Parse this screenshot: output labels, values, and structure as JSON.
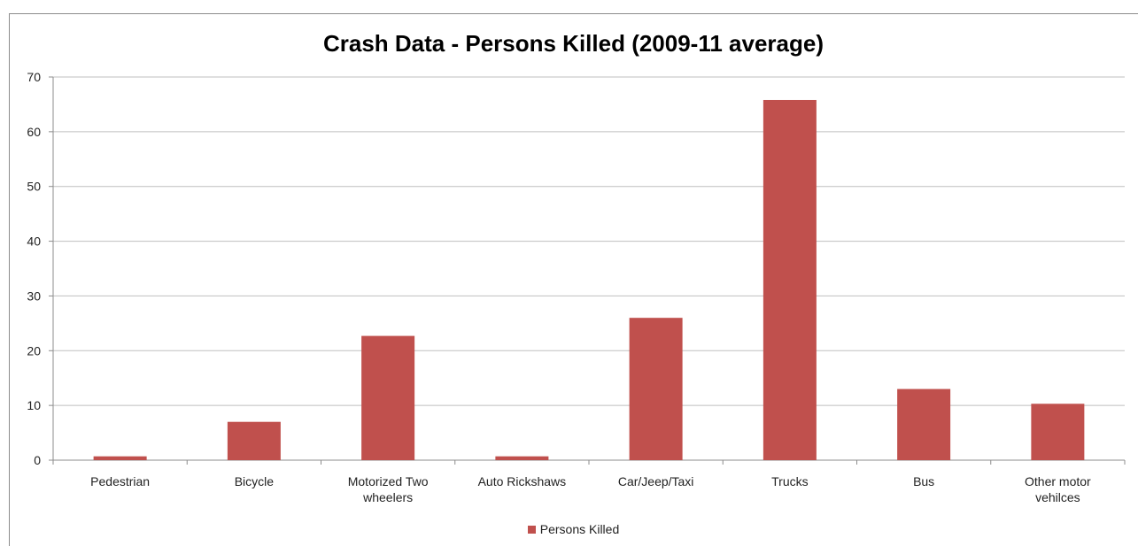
{
  "chart_data": {
    "type": "bar",
    "title": "Crash Data - Persons Killed (2009-11 average)",
    "xlabel": "",
    "ylabel": "",
    "categories": [
      "Pedestrian",
      "Bicycle",
      "Motorized Two wheelers",
      "Auto Rickshaws",
      "Car/Jeep/Taxi",
      "Trucks",
      "Bus",
      "Other motor vehilces"
    ],
    "category_lines": [
      [
        "Pedestrian"
      ],
      [
        "Bicycle"
      ],
      [
        "Motorized Two",
        "wheelers"
      ],
      [
        "Auto Rickshaws"
      ],
      [
        "Car/Jeep/Taxi"
      ],
      [
        "Trucks"
      ],
      [
        "Bus"
      ],
      [
        "Other motor",
        "vehilces"
      ]
    ],
    "series": [
      {
        "name": "Persons Killed",
        "values": [
          0.7,
          7,
          22.7,
          0.7,
          26,
          65.8,
          13,
          10.3
        ],
        "color": "#c0504d"
      }
    ],
    "ylim": [
      0,
      70
    ],
    "yticks": [
      0,
      10,
      20,
      30,
      40,
      50,
      60,
      70
    ],
    "grid": true,
    "legend_position": "bottom"
  }
}
